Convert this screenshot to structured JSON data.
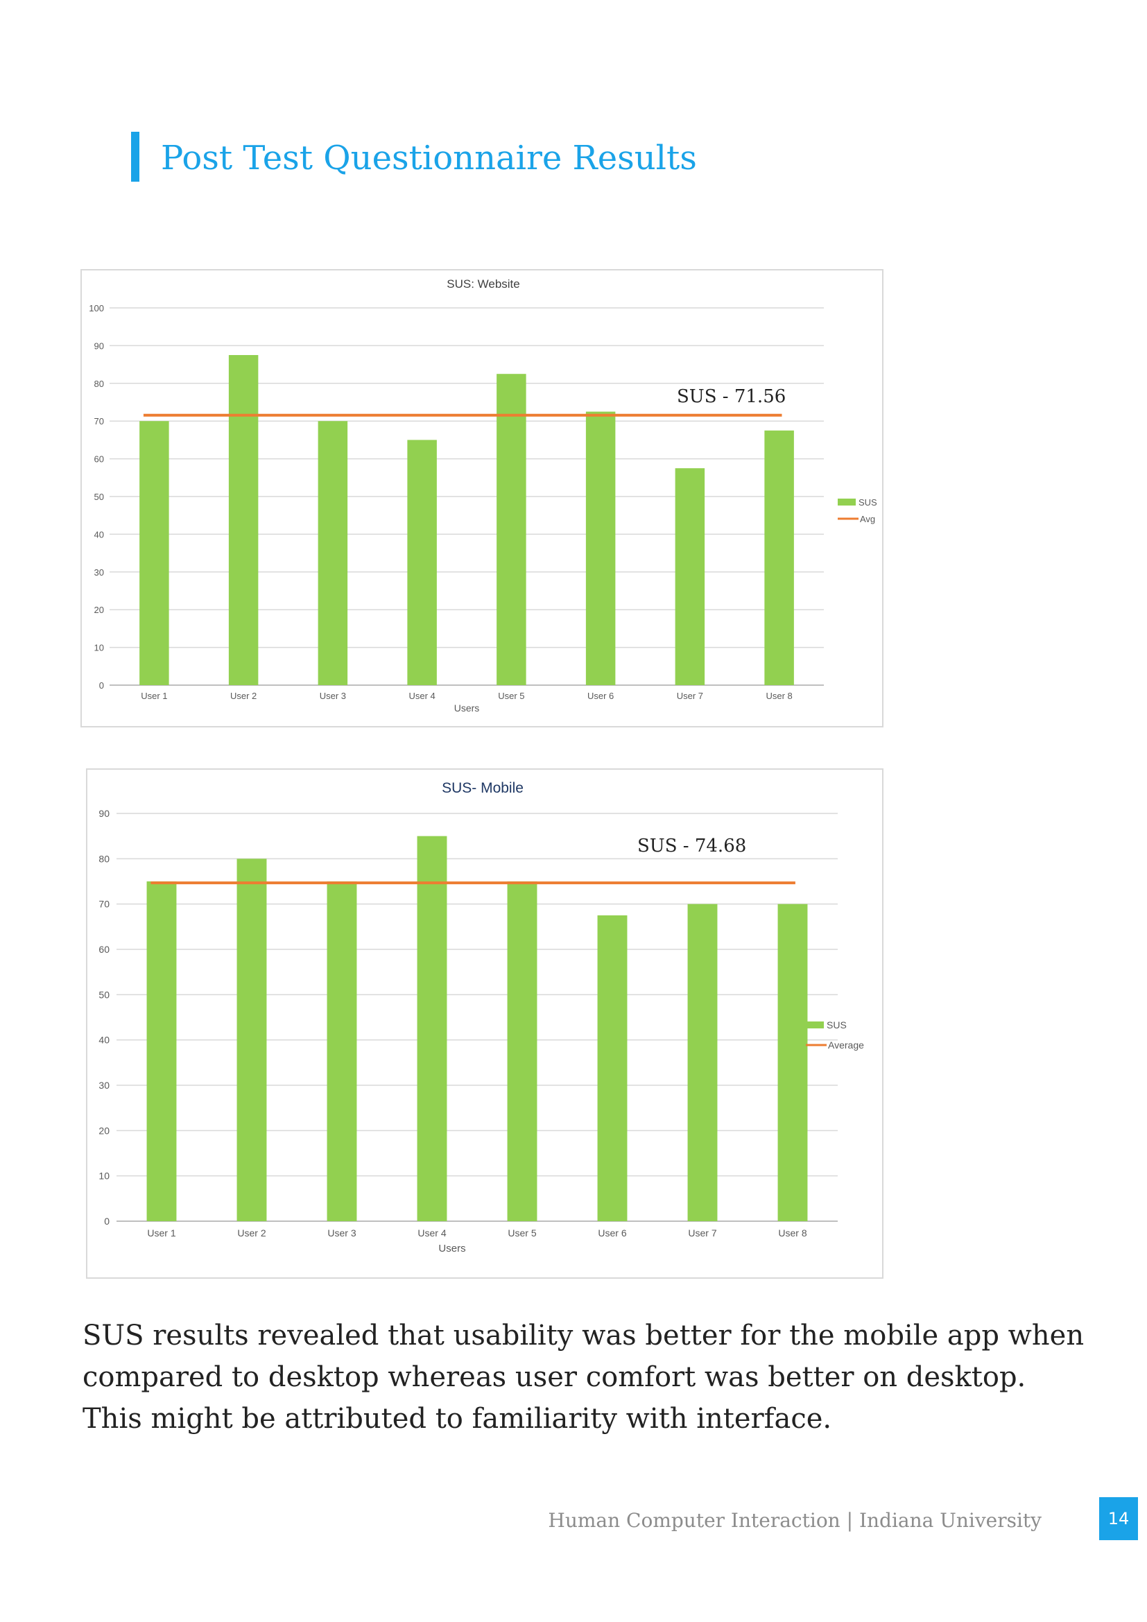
{
  "page": {
    "title": "Post Test Questionnaire Results",
    "body_lines": [
      "SUS results revealed that usability was better for the mobile app when",
      "compared to desktop whereas user comfort was better on desktop.",
      "This might be attributed to familiarity with interface."
    ],
    "footer": "Human Computer Interaction | Indiana University",
    "page_number": "14",
    "accent_color": "#1aa3e8"
  },
  "chart_data": [
    {
      "type": "bar",
      "title": "SUS: Website",
      "xlabel": "Users",
      "ylabel": "",
      "categories": [
        "User 1",
        "User 2",
        "User 3",
        "User 4",
        "User 5",
        "User 6",
        "User 7",
        "User 8"
      ],
      "series": [
        {
          "name": "SUS",
          "type": "bar",
          "color": "#92d050",
          "values": [
            70,
            87.5,
            70,
            65,
            82.5,
            72.5,
            57.5,
            67.5
          ]
        },
        {
          "name": "Avg",
          "type": "line",
          "color": "#ed7d31",
          "values": [
            71.56,
            71.56,
            71.56,
            71.56,
            71.56,
            71.56,
            71.56,
            71.56
          ]
        }
      ],
      "ylim": [
        0,
        100
      ],
      "yticks": [
        0,
        10,
        20,
        30,
        40,
        50,
        60,
        70,
        80,
        90,
        100
      ],
      "grid": true,
      "legend": "right",
      "annotation": "SUS - 71.56"
    },
    {
      "type": "bar",
      "title": "SUS- Mobile",
      "xlabel": "Users",
      "ylabel": "",
      "categories": [
        "User 1",
        "User 2",
        "User 3",
        "User 4",
        "User 5",
        "User 6",
        "User 7",
        "User 8"
      ],
      "series": [
        {
          "name": "SUS",
          "type": "bar",
          "color": "#92d050",
          "values": [
            75,
            80,
            75,
            85,
            75,
            67.5,
            70,
            70
          ]
        },
        {
          "name": "Average",
          "type": "line",
          "color": "#ed7d31",
          "values": [
            74.68,
            74.68,
            74.68,
            74.68,
            74.68,
            74.68,
            74.68,
            74.68
          ]
        }
      ],
      "ylim": [
        0,
        90
      ],
      "yticks": [
        0,
        10,
        20,
        30,
        40,
        50,
        60,
        70,
        80,
        90
      ],
      "grid": true,
      "legend": "right",
      "annotation": "SUS - 74.68"
    }
  ]
}
